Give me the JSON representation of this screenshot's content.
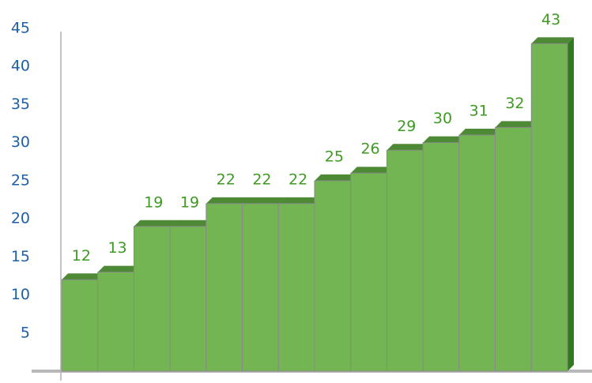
{
  "chart_data": {
    "type": "bar3d",
    "categories": [
      null,
      null,
      null,
      null,
      null,
      null,
      null,
      null,
      null,
      null,
      null,
      null,
      null,
      null
    ],
    "values": [
      12,
      13,
      19,
      19,
      22,
      22,
      22,
      25,
      26,
      29,
      30,
      31,
      32,
      43
    ],
    "color": "#72b552",
    "ylim": [
      0,
      45
    ],
    "yticks": [
      5,
      10,
      15,
      20,
      25,
      30,
      35,
      40,
      45
    ],
    "grid": false
  }
}
